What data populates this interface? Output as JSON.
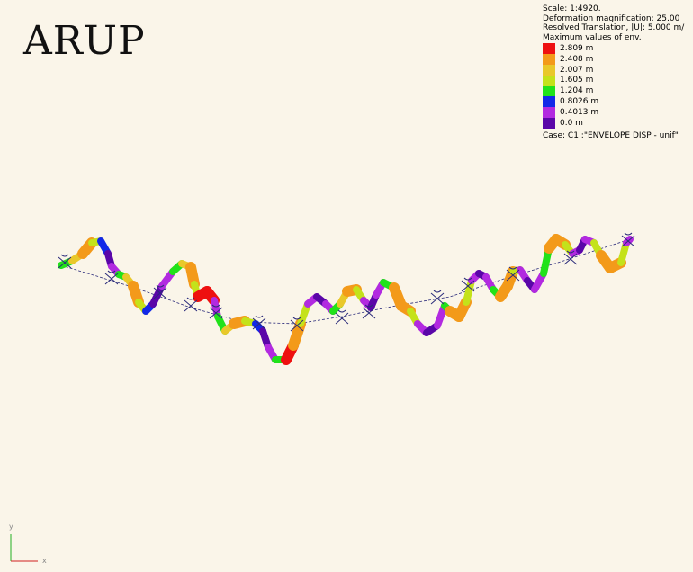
{
  "logo": {
    "text": "ARUP"
  },
  "info": {
    "scale": "Scale: 1:4920.",
    "deformation": "Deformation magnification: 25.00",
    "resolved": "Resolved Translation, |U|: 5.000 m/",
    "maxvalues": "Maximum values of env.",
    "case": "Case: C1 :\"ENVELOPE DISP - unif\""
  },
  "legend": [
    {
      "label": "2.809 m",
      "color": "#ee1010"
    },
    {
      "label": "2.408 m",
      "color": "#f39a1a"
    },
    {
      "label": "2.007 m",
      "color": "#e9c82a"
    },
    {
      "label": "1.605 m",
      "color": "#c4e21a"
    },
    {
      "label": "1.204 m",
      "color": "#21e21a"
    },
    {
      "label": "0.8026 m",
      "color": "#1228e8"
    },
    {
      "label": "0.4013 m",
      "color": "#b22ae0"
    },
    {
      "label": "0.0 m",
      "color": "#5a06a8"
    }
  ],
  "axes": {
    "y": "y",
    "x": "x"
  }
}
